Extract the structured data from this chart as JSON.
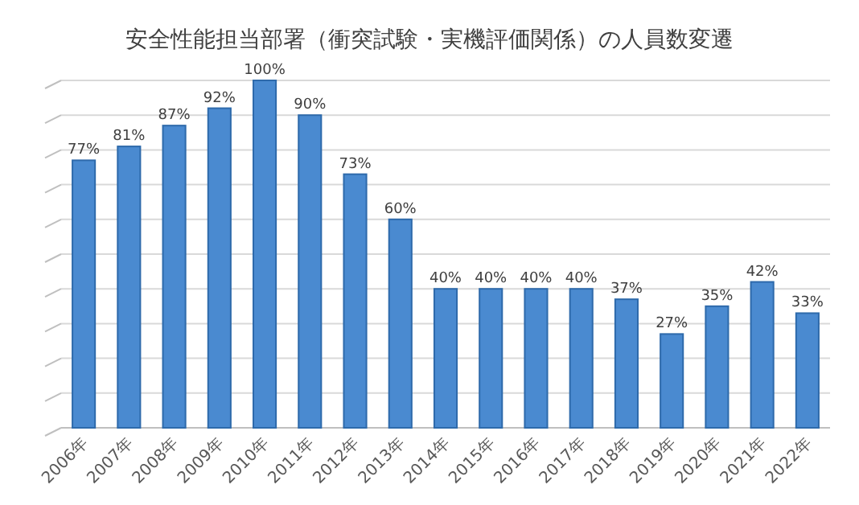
{
  "chart_data": {
    "type": "bar",
    "title": "安全性能担当部署（衝突試験・実機評価関係）の人員数変遷",
    "categories": [
      "2006年",
      "2007年",
      "2008年",
      "2009年",
      "2010年",
      "2011年",
      "2012年",
      "2013年",
      "2014年",
      "2015年",
      "2016年",
      "2017年",
      "2018年",
      "2019年",
      "2020年",
      "2021年",
      "2022年"
    ],
    "values": [
      77,
      81,
      87,
      92,
      100,
      90,
      73,
      60,
      40,
      40,
      40,
      40,
      37,
      27,
      35,
      42,
      33
    ],
    "value_labels": [
      "77%",
      "81%",
      "87%",
      "92%",
      "100%",
      "90%",
      "73%",
      "60%",
      "40%",
      "40%",
      "40%",
      "40%",
      "37%",
      "27%",
      "35%",
      "42%",
      "33%"
    ],
    "color": "#4a8ad0",
    "ylim": [
      0,
      100
    ],
    "yticks": [
      0,
      10,
      20,
      30,
      40,
      50,
      60,
      70,
      80,
      90,
      100
    ],
    "grid": "y",
    "tick_labels": "x"
  }
}
